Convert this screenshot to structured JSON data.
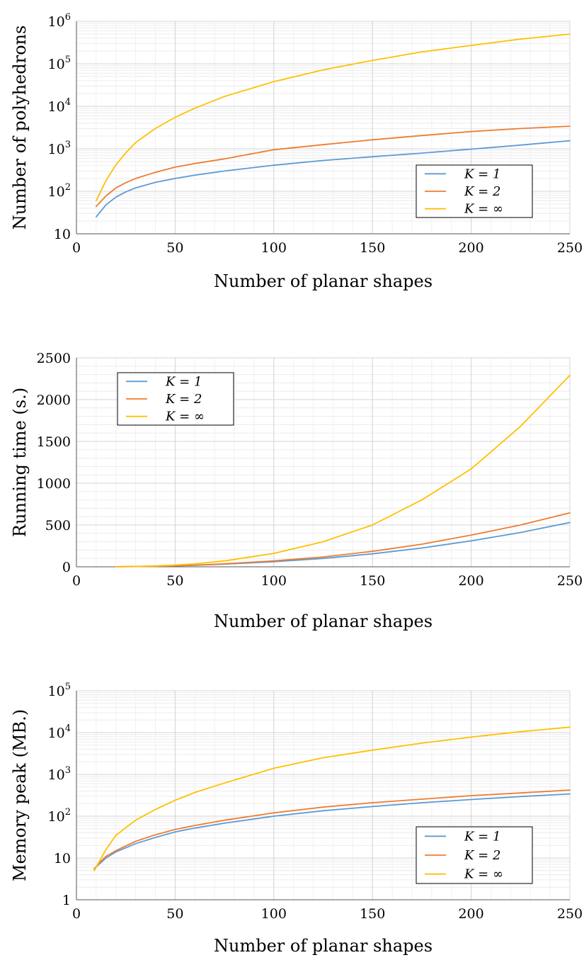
{
  "chart_data": [
    {
      "type": "line",
      "scale": "log",
      "xlabel": "Number of planar shapes",
      "ylabel": "Number of polyhedrons",
      "xlim": [
        0,
        250
      ],
      "ylim": [
        10,
        1000000
      ],
      "xticks": [
        0,
        50,
        100,
        150,
        200,
        250
      ],
      "yticks": [
        {
          "value": 10,
          "base": "10",
          "exp": ""
        },
        {
          "value": 100,
          "base": "10",
          "exp": "2"
        },
        {
          "value": 1000,
          "base": "10",
          "exp": "3"
        },
        {
          "value": 10000,
          "base": "10",
          "exp": "4"
        },
        {
          "value": 100000,
          "base": "10",
          "exp": "5"
        },
        {
          "value": 1000000,
          "base": "10",
          "exp": "6"
        }
      ],
      "grid": true,
      "legend_position": "bottom-right",
      "x": [
        10,
        15,
        20,
        25,
        30,
        40,
        50,
        60,
        75,
        100,
        125,
        150,
        175,
        200,
        225,
        250
      ],
      "series": [
        {
          "name": "K = 1",
          "color": "#5b9bd5",
          "values": [
            25,
            48,
            73,
            97,
            120,
            162,
            200,
            240,
            300,
            410,
            530,
            650,
            790,
            980,
            1220,
            1550
          ]
        },
        {
          "name": "K = 2",
          "color": "#ed7d31",
          "values": [
            44,
            78,
            120,
            160,
            200,
            280,
            370,
            450,
            580,
            950,
            1250,
            1630,
            2050,
            2540,
            3000,
            3400
          ]
        },
        {
          "name": "K = ∞",
          "color": "#ffc000",
          "values": [
            60,
            180,
            420,
            800,
            1400,
            3000,
            5500,
            9000,
            17000,
            38000,
            72000,
            120000,
            190000,
            270000,
            380000,
            500000
          ]
        }
      ]
    },
    {
      "type": "line",
      "scale": "linear",
      "xlabel": "Number of planar shapes",
      "ylabel": "Running time (s.)",
      "xlim": [
        0,
        250
      ],
      "ylim": [
        0,
        2500
      ],
      "xticks": [
        0,
        50,
        100,
        150,
        200,
        250
      ],
      "yticks": [
        {
          "value": 0,
          "base": "0",
          "exp": ""
        },
        {
          "value": 500,
          "base": "500",
          "exp": ""
        },
        {
          "value": 1000,
          "base": "1000",
          "exp": ""
        },
        {
          "value": 1500,
          "base": "1500",
          "exp": ""
        },
        {
          "value": 2000,
          "base": "2000",
          "exp": ""
        },
        {
          "value": 2500,
          "base": "2500",
          "exp": ""
        }
      ],
      "grid": true,
      "legend_position": "top-left",
      "x": [
        20,
        30,
        40,
        50,
        60,
        75,
        100,
        125,
        150,
        175,
        200,
        225,
        250
      ],
      "series": [
        {
          "name": "K = 1",
          "color": "#5b9bd5",
          "values": [
            1,
            3,
            6,
            11,
            18,
            32,
            60,
            100,
            155,
            225,
            310,
            410,
            530
          ]
        },
        {
          "name": "K = 2",
          "color": "#ed7d31",
          "values": [
            1,
            3,
            7,
            12,
            20,
            36,
            70,
            118,
            185,
            270,
            380,
            500,
            645
          ]
        },
        {
          "name": "K = ∞",
          "color": "#ffc000",
          "values": [
            1,
            4,
            10,
            20,
            35,
            70,
            160,
            300,
            500,
            800,
            1170,
            1680,
            2290
          ]
        }
      ]
    },
    {
      "type": "line",
      "scale": "log",
      "xlabel": "Number of planar shapes",
      "ylabel": "Memory peak (MB.)",
      "xlim": [
        0,
        250
      ],
      "ylim": [
        1,
        100000
      ],
      "xticks": [
        0,
        50,
        100,
        150,
        200,
        250
      ],
      "yticks": [
        {
          "value": 1,
          "base": "1",
          "exp": ""
        },
        {
          "value": 10,
          "base": "10",
          "exp": ""
        },
        {
          "value": 100,
          "base": "10",
          "exp": "2"
        },
        {
          "value": 1000,
          "base": "10",
          "exp": "3"
        },
        {
          "value": 10000,
          "base": "10",
          "exp": "4"
        },
        {
          "value": 100000,
          "base": "10",
          "exp": "5"
        }
      ],
      "grid": true,
      "legend_position": "bottom-right",
      "x": [
        9,
        12,
        15,
        20,
        30,
        40,
        50,
        60,
        75,
        100,
        125,
        150,
        175,
        200,
        225,
        250
      ],
      "series": [
        {
          "name": "K = 1",
          "color": "#5b9bd5",
          "values": [
            5.5,
            7.5,
            10,
            14,
            22,
            31,
            42,
            52,
            68,
            100,
            135,
            170,
            210,
            250,
            295,
            340
          ]
        },
        {
          "name": "K = 2",
          "color": "#ed7d31",
          "values": [
            5.5,
            8,
            11,
            15,
            25,
            36,
            48,
            60,
            80,
            120,
            165,
            210,
            255,
            310,
            360,
            420
          ]
        },
        {
          "name": "K = ∞",
          "color": "#ffc000",
          "values": [
            5,
            9,
            16,
            35,
            80,
            145,
            240,
            370,
            620,
            1400,
            2500,
            3800,
            5600,
            7800,
            10500,
            13500
          ]
        }
      ]
    }
  ]
}
